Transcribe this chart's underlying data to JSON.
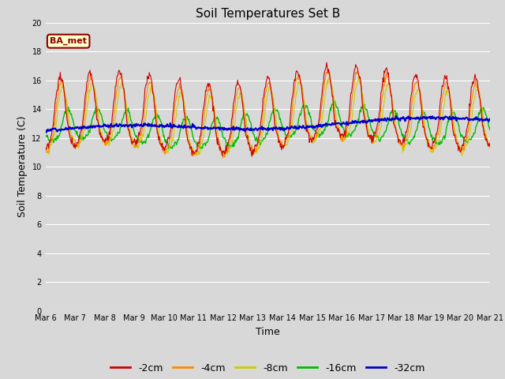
{
  "title": "Soil Temperatures Set B",
  "xlabel": "Time",
  "ylabel": "Soil Temperature (C)",
  "annotation": "BA_met",
  "ylim": [
    0,
    20
  ],
  "xlim": [
    0,
    15
  ],
  "x_tick_labels": [
    "Mar 6",
    "Mar 7",
    "Mar 8",
    "Mar 9",
    "Mar 10",
    "Mar 11",
    "Mar 12",
    "Mar 13",
    "Mar 14",
    "Mar 15",
    "Mar 16",
    "Mar 17",
    "Mar 18",
    "Mar 19",
    "Mar 20",
    "Mar 21"
  ],
  "colors": {
    "-2cm": "#cc0000",
    "-4cm": "#ff8800",
    "-8cm": "#cccc00",
    "-16cm": "#00bb00",
    "-32cm": "#0000cc"
  },
  "legend_labels": [
    "-2cm",
    "-4cm",
    "-8cm",
    "-16cm",
    "-32cm"
  ],
  "bg_color": "#d8d8d8",
  "title_fontsize": 11,
  "tick_fontsize": 7,
  "label_fontsize": 9
}
